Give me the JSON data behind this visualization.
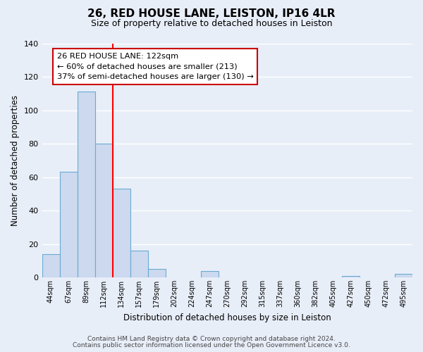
{
  "title": "26, RED HOUSE LANE, LEISTON, IP16 4LR",
  "subtitle": "Size of property relative to detached houses in Leiston",
  "xlabel": "Distribution of detached houses by size in Leiston",
  "ylabel": "Number of detached properties",
  "bar_labels": [
    "44sqm",
    "67sqm",
    "89sqm",
    "112sqm",
    "134sqm",
    "157sqm",
    "179sqm",
    "202sqm",
    "224sqm",
    "247sqm",
    "270sqm",
    "292sqm",
    "315sqm",
    "337sqm",
    "360sqm",
    "382sqm",
    "405sqm",
    "427sqm",
    "450sqm",
    "472sqm",
    "495sqm"
  ],
  "bar_values": [
    14,
    63,
    111,
    80,
    53,
    16,
    5,
    0,
    0,
    4,
    0,
    0,
    0,
    0,
    0,
    0,
    0,
    1,
    0,
    0,
    2
  ],
  "bar_color": "#ccd9ee",
  "bar_edge_color": "#6aaad4",
  "ylim": [
    0,
    140
  ],
  "yticks": [
    0,
    20,
    40,
    60,
    80,
    100,
    120,
    140
  ],
  "red_line_x": 3.5,
  "annotation_title": "26 RED HOUSE LANE: 122sqm",
  "annotation_line1": "← 60% of detached houses are smaller (213)",
  "annotation_line2": "37% of semi-detached houses are larger (130) →",
  "footer1": "Contains HM Land Registry data © Crown copyright and database right 2024.",
  "footer2": "Contains public sector information licensed under the Open Government Licence v3.0.",
  "background_color": "#e8eef8",
  "plot_background": "#e8eef8",
  "grid_color": "#ffffff",
  "annotation_box_color": "#ffffff",
  "annotation_box_edge": "#cc0000",
  "title_fontsize": 11,
  "subtitle_fontsize": 9
}
